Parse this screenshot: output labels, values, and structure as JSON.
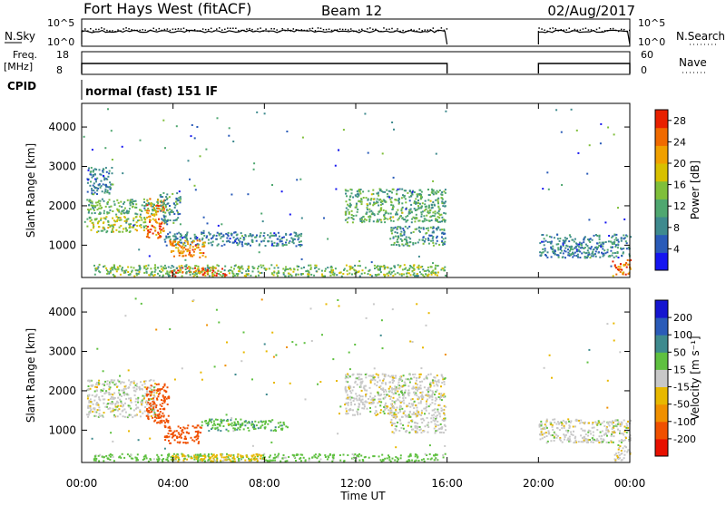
{
  "header": {
    "title": "Fort Hays West (fitACF)",
    "beam": "Beam 12",
    "date": "02/Aug/2017",
    "mode": "normal (fast) 151 IF"
  },
  "time_axis": {
    "label": "Time UT",
    "ticks": [
      "00:00",
      "04:00",
      "08:00",
      "12:00",
      "16:00",
      "20:00",
      "00:00"
    ],
    "tick_hours": [
      0,
      4,
      8,
      12,
      16,
      20,
      24
    ]
  },
  "param_labels": {
    "nsky": "N.Sky",
    "nsky_ticks": [
      "10^5",
      "10^0"
    ],
    "nsearch": "N.Search",
    "nsearch_ticks": [
      "10^5",
      "10^0"
    ],
    "freq": "Freq.",
    "freq_unit": "[MHz]",
    "freq_ticks": [
      "18",
      "8"
    ],
    "nave": "Nave",
    "nave_ticks": [
      "60",
      "0"
    ],
    "cpid": "CPID"
  },
  "chart_data": [
    {
      "type": "heatmap",
      "name": "power",
      "ylabel": "Slant Range [km]",
      "yticks": [
        1000,
        2000,
        3000,
        4000
      ],
      "ylim": [
        180,
        4600
      ],
      "xlim": [
        0,
        24
      ],
      "colorbar": {
        "label": "Power [dB]",
        "ticks": [
          "4",
          "8",
          "12",
          "16",
          "20",
          "24",
          "28"
        ],
        "tick_values": [
          4,
          8,
          12,
          16,
          20,
          24,
          28
        ],
        "range": [
          0,
          30
        ],
        "colors": [
          "#1515f0",
          "#2a5bb8",
          "#3e8a8e",
          "#4fa770",
          "#7fbf3a",
          "#d8c000",
          "#f0a000",
          "#f06a00",
          "#e82000"
        ]
      },
      "data_gaps_hours": [
        [
          16,
          20
        ]
      ],
      "regions": [
        {
          "t0": 0.2,
          "t1": 2.8,
          "r0": 1350,
          "r1": 1750,
          "value": 16
        },
        {
          "t0": 0.2,
          "t1": 3.4,
          "r0": 1800,
          "r1": 2200,
          "value": 12
        },
        {
          "t0": 2.8,
          "t1": 3.6,
          "r0": 1200,
          "r1": 2200,
          "value": 24
        },
        {
          "t0": 3.4,
          "t1": 4.3,
          "r0": 1550,
          "r1": 2350,
          "value": 10
        },
        {
          "t0": 3.6,
          "t1": 9.6,
          "r0": 1000,
          "r1": 1350,
          "value": 8
        },
        {
          "t0": 3.8,
          "t1": 5.4,
          "r0": 700,
          "r1": 1150,
          "value": 22
        },
        {
          "t0": 3.9,
          "t1": 6.3,
          "r0": 230,
          "r1": 450,
          "value": 28
        },
        {
          "t0": 0.5,
          "t1": 15.9,
          "r0": 230,
          "r1": 520,
          "value": 14
        },
        {
          "t0": 11.5,
          "t1": 15.9,
          "r0": 1600,
          "r1": 2450,
          "value": 12
        },
        {
          "t0": 13.5,
          "t1": 15.9,
          "r0": 1000,
          "r1": 1500,
          "value": 10
        },
        {
          "t0": 0.2,
          "t1": 1.3,
          "r0": 2300,
          "r1": 3000,
          "value": 8
        },
        {
          "t0": 20.0,
          "t1": 24.0,
          "r0": 700,
          "r1": 1300,
          "value": 8
        },
        {
          "t0": 23.2,
          "t1": 24.0,
          "r0": 230,
          "r1": 650,
          "value": 24
        }
      ]
    },
    {
      "type": "heatmap",
      "name": "velocity",
      "ylabel": "Slant Range [km]",
      "yticks": [
        1000,
        2000,
        3000,
        4000
      ],
      "ylim": [
        180,
        4600
      ],
      "xlim": [
        0,
        24
      ],
      "colorbar": {
        "label": "Velocity [m s⁻¹]",
        "ticks": [
          "200",
          "100",
          "50",
          "15",
          "-15",
          "-50",
          "-100",
          "-200"
        ],
        "colors": [
          "#1515d0",
          "#2a5bb8",
          "#3e8a8e",
          "#5fc040",
          "#c8c8c8",
          "#e8b800",
          "#f09000",
          "#f05000",
          "#e81000"
        ]
      },
      "data_gaps_hours": [
        [
          16,
          20
        ]
      ],
      "regions": [
        {
          "t0": 0.2,
          "t1": 3.2,
          "r0": 1350,
          "r1": 2300,
          "value": 0
        },
        {
          "t0": 2.8,
          "t1": 3.8,
          "r0": 1200,
          "r1": 2200,
          "value": -150
        },
        {
          "t0": 3.6,
          "t1": 5.2,
          "r0": 680,
          "r1": 1150,
          "value": -120
        },
        {
          "t0": 5.2,
          "t1": 9.0,
          "r0": 1000,
          "r1": 1300,
          "value": 40
        },
        {
          "t0": 0.5,
          "t1": 15.9,
          "r0": 230,
          "r1": 420,
          "value": 30
        },
        {
          "t0": 3.9,
          "t1": 8.0,
          "r0": 230,
          "r1": 420,
          "value": -30
        },
        {
          "t0": 11.5,
          "t1": 15.9,
          "r0": 1400,
          "r1": 2450,
          "value": 0
        },
        {
          "t0": 13.5,
          "t1": 15.9,
          "r0": 950,
          "r1": 1400,
          "value": 0
        },
        {
          "t0": 20.0,
          "t1": 24.0,
          "r0": 700,
          "r1": 1300,
          "value": 0
        },
        {
          "t0": 23.3,
          "t1": 24.0,
          "r0": 230,
          "r1": 650,
          "value": 0
        }
      ]
    }
  ]
}
